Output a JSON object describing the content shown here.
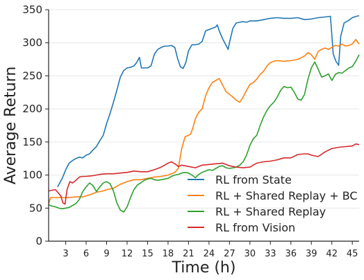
{
  "chart_data": {
    "type": "line",
    "title": "",
    "xlabel": "Time (h)",
    "ylabel": "Average Return",
    "xlim": [
      0.5,
      46
    ],
    "ylim": [
      0,
      350
    ],
    "x_ticks": [
      3,
      6,
      9,
      12,
      15,
      18,
      21,
      24,
      27,
      30,
      33,
      36,
      39,
      42,
      45
    ],
    "y_ticks": [
      0,
      50,
      100,
      150,
      200,
      250,
      300,
      350
    ],
    "grid": "horizontal",
    "legend_position": "bottom-center",
    "series": [
      {
        "name": "RL from State",
        "color": "#1f77b4",
        "points": [
          [
            1.8,
            82
          ],
          [
            2.5,
            95
          ],
          [
            3,
            108
          ],
          [
            3.5,
            118
          ],
          [
            4,
            122
          ],
          [
            4.5,
            125
          ],
          [
            5,
            127
          ],
          [
            5.5,
            126
          ],
          [
            6,
            130
          ],
          [
            6.5,
            132
          ],
          [
            7,
            138
          ],
          [
            7.5,
            143
          ],
          [
            8,
            152
          ],
          [
            8.5,
            160
          ],
          [
            9,
            178
          ],
          [
            9.5,
            193
          ],
          [
            10,
            210
          ],
          [
            10.5,
            228
          ],
          [
            11,
            248
          ],
          [
            11.5,
            258
          ],
          [
            12,
            262
          ],
          [
            12.5,
            263
          ],
          [
            13,
            265
          ],
          [
            13.4,
            270
          ],
          [
            13.8,
            278
          ],
          [
            14.1,
            262
          ],
          [
            14.5,
            262
          ],
          [
            15,
            262
          ],
          [
            15.5,
            265
          ],
          [
            16,
            283
          ],
          [
            16.5,
            290
          ],
          [
            17,
            293
          ],
          [
            17.5,
            295
          ],
          [
            18,
            295
          ],
          [
            18.5,
            296
          ],
          [
            19,
            293
          ],
          [
            19.4,
            276
          ],
          [
            19.8,
            264
          ],
          [
            20.2,
            261
          ],
          [
            20.6,
            270
          ],
          [
            21,
            288
          ],
          [
            21.5,
            297
          ],
          [
            22,
            297
          ],
          [
            22.5,
            298
          ],
          [
            23,
            302
          ],
          [
            23.5,
            318
          ],
          [
            24,
            320
          ],
          [
            24.5,
            322
          ],
          [
            25,
            324
          ],
          [
            25.2,
            327
          ],
          [
            25.5,
            318
          ],
          [
            26,
            306
          ],
          [
            26.5,
            296
          ],
          [
            26.8,
            290
          ],
          [
            27,
            300
          ],
          [
            27.5,
            322
          ],
          [
            28,
            330
          ],
          [
            28.5,
            331
          ],
          [
            29,
            332
          ],
          [
            29.5,
            331
          ],
          [
            30,
            333
          ],
          [
            31,
            333
          ],
          [
            32,
            335
          ],
          [
            33,
            337
          ],
          [
            34,
            338
          ],
          [
            35,
            337
          ],
          [
            36,
            337
          ],
          [
            37,
            338
          ],
          [
            38,
            335
          ],
          [
            39,
            336
          ],
          [
            40,
            338
          ],
          [
            41,
            339
          ],
          [
            41.8,
            340
          ],
          [
            42.2,
            283
          ],
          [
            42.6,
            272
          ],
          [
            43,
            266
          ],
          [
            43.3,
            310
          ],
          [
            43.8,
            330
          ],
          [
            44.5,
            334
          ],
          [
            45,
            338
          ],
          [
            45.6,
            340
          ],
          [
            46,
            341
          ]
        ]
      },
      {
        "name": "RL + Shared Replay + BC",
        "color": "#ff7f0e",
        "points": [
          [
            0.5,
            57
          ],
          [
            0.8,
            66
          ],
          [
            1.5,
            66
          ],
          [
            2.5,
            66
          ],
          [
            3.5,
            66
          ],
          [
            4.5,
            67
          ],
          [
            5.5,
            67
          ],
          [
            6.5,
            70
          ],
          [
            7.5,
            74
          ],
          [
            8.5,
            76
          ],
          [
            9,
            78
          ],
          [
            10,
            80
          ],
          [
            11,
            86
          ],
          [
            12,
            90
          ],
          [
            13,
            93
          ],
          [
            14,
            93
          ],
          [
            15,
            95
          ],
          [
            16,
            97
          ],
          [
            17,
            98
          ],
          [
            18,
            100
          ],
          [
            19,
            104
          ],
          [
            19.5,
            110
          ],
          [
            20,
            140
          ],
          [
            20.5,
            158
          ],
          [
            21,
            160
          ],
          [
            21.3,
            162
          ],
          [
            21.6,
            170
          ],
          [
            22,
            185
          ],
          [
            22.5,
            195
          ],
          [
            23,
            200
          ],
          [
            23.5,
            220
          ],
          [
            24,
            232
          ],
          [
            24.5,
            240
          ],
          [
            25,
            243
          ],
          [
            25.5,
            246
          ],
          [
            26,
            236
          ],
          [
            26.5,
            226
          ],
          [
            27,
            222
          ],
          [
            27.5,
            218
          ],
          [
            28,
            213
          ],
          [
            28.5,
            210
          ],
          [
            29,
            218
          ],
          [
            29.5,
            228
          ],
          [
            30,
            237
          ],
          [
            30.5,
            240
          ],
          [
            31,
            245
          ],
          [
            31.5,
            252
          ],
          [
            32,
            257
          ],
          [
            32.5,
            265
          ],
          [
            33,
            270
          ],
          [
            33.5,
            272
          ],
          [
            34,
            273
          ],
          [
            35,
            272
          ],
          [
            36,
            273
          ],
          [
            37,
            275
          ],
          [
            38,
            280
          ],
          [
            38.5,
            285
          ],
          [
            39,
            282
          ],
          [
            39.5,
            275
          ],
          [
            40,
            287
          ],
          [
            40.5,
            290
          ],
          [
            41,
            292
          ],
          [
            41.5,
            290
          ],
          [
            42,
            293
          ],
          [
            42.5,
            296
          ],
          [
            43,
            295
          ],
          [
            43.5,
            298
          ],
          [
            44,
            295
          ],
          [
            44.5,
            296
          ],
          [
            45,
            298
          ],
          [
            45.5,
            305
          ],
          [
            46,
            298
          ]
        ]
      },
      {
        "name": "RL + Shared Replay",
        "color": "#2ca02c",
        "points": [
          [
            0.5,
            55
          ],
          [
            1,
            53
          ],
          [
            1.5,
            52
          ],
          [
            2,
            50
          ],
          [
            2.5,
            49
          ],
          [
            3,
            50
          ],
          [
            3.5,
            51
          ],
          [
            4,
            54
          ],
          [
            4.5,
            57
          ],
          [
            5,
            63
          ],
          [
            5.5,
            75
          ],
          [
            6,
            82
          ],
          [
            6.5,
            88
          ],
          [
            7,
            84
          ],
          [
            7.5,
            75
          ],
          [
            8,
            82
          ],
          [
            8.5,
            88
          ],
          [
            9,
            90
          ],
          [
            9.5,
            87
          ],
          [
            10,
            76
          ],
          [
            10.5,
            58
          ],
          [
            11,
            47
          ],
          [
            11.5,
            44
          ],
          [
            12,
            52
          ],
          [
            12.5,
            66
          ],
          [
            13,
            78
          ],
          [
            13.5,
            85
          ],
          [
            14,
            88
          ],
          [
            14.5,
            92
          ],
          [
            15,
            94
          ],
          [
            15.5,
            95
          ],
          [
            16,
            93
          ],
          [
            16.5,
            92
          ],
          [
            17,
            93
          ],
          [
            17.5,
            94
          ],
          [
            18,
            95
          ],
          [
            18.5,
            98
          ],
          [
            19,
            100
          ],
          [
            19.5,
            101
          ],
          [
            20,
            103
          ],
          [
            20.5,
            104
          ],
          [
            21,
            103
          ],
          [
            21.5,
            100
          ],
          [
            22,
            96
          ],
          [
            22.5,
            101
          ],
          [
            23,
            104
          ],
          [
            23.5,
            106
          ],
          [
            24,
            108
          ],
          [
            24.5,
            107
          ],
          [
            25,
            110
          ],
          [
            25.5,
            113
          ],
          [
            26,
            114
          ],
          [
            26.5,
            111
          ],
          [
            27,
            110
          ],
          [
            27.5,
            111
          ],
          [
            28,
            112
          ],
          [
            28.5,
            115
          ],
          [
            29,
            120
          ],
          [
            29.5,
            130
          ],
          [
            30,
            145
          ],
          [
            30.5,
            155
          ],
          [
            31,
            160
          ],
          [
            31.5,
            175
          ],
          [
            32,
            188
          ],
          [
            32.5,
            198
          ],
          [
            33,
            205
          ],
          [
            33.5,
            210
          ],
          [
            34,
            218
          ],
          [
            34.5,
            228
          ],
          [
            35,
            234
          ],
          [
            35.5,
            232
          ],
          [
            36,
            233
          ],
          [
            36.5,
            225
          ],
          [
            37,
            215
          ],
          [
            37.5,
            213
          ],
          [
            38,
            222
          ],
          [
            38.5,
            245
          ],
          [
            39,
            262
          ],
          [
            39.5,
            271
          ],
          [
            40,
            260
          ],
          [
            40.5,
            248
          ],
          [
            41,
            250
          ],
          [
            41.5,
            253
          ],
          [
            42,
            243
          ],
          [
            42.5,
            252
          ],
          [
            43,
            255
          ],
          [
            43.5,
            254
          ],
          [
            44,
            258
          ],
          [
            44.5,
            262
          ],
          [
            45,
            264
          ],
          [
            45.5,
            272
          ],
          [
            46,
            282
          ]
        ]
      },
      {
        "name": "RL from Vision",
        "color": "#d62728",
        "points": [
          [
            0.5,
            76
          ],
          [
            1,
            77
          ],
          [
            1.5,
            78
          ],
          [
            2,
            72
          ],
          [
            2.3,
            68
          ],
          [
            2.6,
            58
          ],
          [
            2.9,
            56
          ],
          [
            3.2,
            78
          ],
          [
            3.6,
            90
          ],
          [
            4,
            88
          ],
          [
            4.5,
            92
          ],
          [
            5,
            97
          ],
          [
            5.5,
            98
          ],
          [
            6,
            98
          ],
          [
            7,
            99
          ],
          [
            8,
            101
          ],
          [
            9,
            102
          ],
          [
            10,
            102
          ],
          [
            11,
            103
          ],
          [
            12,
            104
          ],
          [
            13,
            106
          ],
          [
            14,
            105
          ],
          [
            15,
            105
          ],
          [
            16,
            108
          ],
          [
            17,
            112
          ],
          [
            18,
            118
          ],
          [
            18.5,
            120
          ],
          [
            19,
            117
          ],
          [
            19.5,
            113
          ],
          [
            20,
            115
          ],
          [
            21,
            113
          ],
          [
            22,
            111
          ],
          [
            23,
            115
          ],
          [
            24,
            116
          ],
          [
            25,
            117
          ],
          [
            26,
            118
          ],
          [
            27,
            114
          ],
          [
            28,
            112
          ],
          [
            29,
            111
          ],
          [
            30,
            112
          ],
          [
            31,
            118
          ],
          [
            32,
            120
          ],
          [
            33,
            121
          ],
          [
            34,
            123
          ],
          [
            35,
            126
          ],
          [
            36,
            126
          ],
          [
            37,
            131
          ],
          [
            38,
            132
          ],
          [
            38.5,
            132
          ],
          [
            39,
            130
          ],
          [
            40,
            128
          ],
          [
            41,
            135
          ],
          [
            42,
            140
          ],
          [
            43,
            142
          ],
          [
            44,
            143
          ],
          [
            45,
            144
          ],
          [
            45.5,
            147
          ],
          [
            46,
            146
          ]
        ]
      }
    ]
  }
}
